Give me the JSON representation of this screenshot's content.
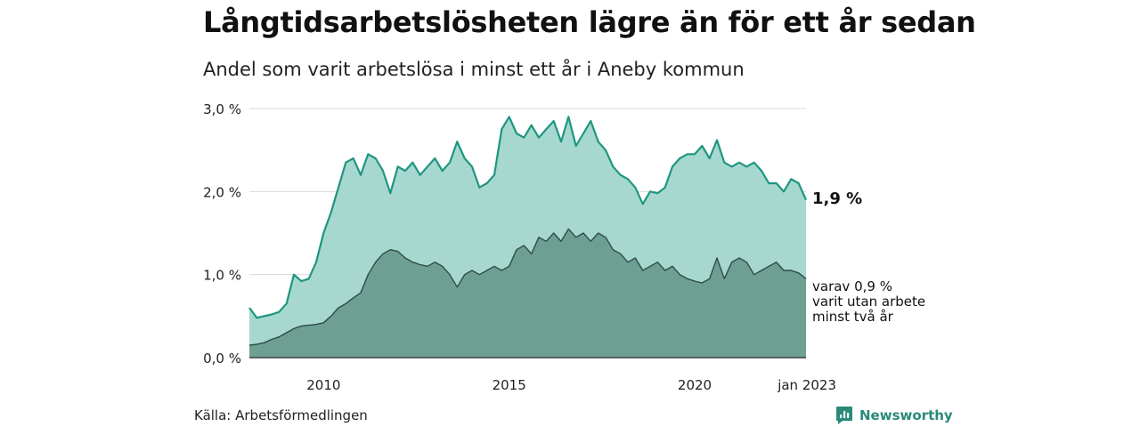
{
  "title": "Långtidsarbetslösheten lägre än för ett år sedan",
  "subtitle": "Andel som varit arbetslösa i minst ett år i Aneby kommun",
  "source": "Källa: Arbetsförmedlingen",
  "brand": "Newsworthy",
  "end_label": "1,9 %",
  "note_lines": [
    "varav 0,9 %",
    "varit utan arbete",
    "minst två år"
  ],
  "colors": {
    "upper_fill": "#a6d8cf",
    "upper_line": "#1e9680",
    "lower_fill": "#6e9f93",
    "lower_line": "#2f4b45",
    "grid": "#d9d9d9",
    "brand": "#2a8a78"
  },
  "chart_data": {
    "type": "area",
    "x_unit": "year",
    "xlim": [
      2008.0,
      2023.0
    ],
    "ylim": [
      0,
      3.0
    ],
    "y_ticks": [
      0,
      1,
      2,
      3
    ],
    "y_tick_labels": [
      "0,0 %",
      "1,0 %",
      "2,0 %",
      "3,0 %"
    ],
    "x_ticks": [
      2010,
      2015,
      2020,
      2023.0
    ],
    "x_tick_labels": [
      "2010",
      "2015",
      "2020",
      "jan 2023"
    ],
    "grid": true,
    "series": [
      {
        "x": [
          2008.0,
          2008.2,
          2008.4,
          2008.6,
          2008.8,
          2009.0,
          2009.2,
          2009.4,
          2009.6,
          2009.8,
          2010.0,
          2010.2,
          2010.4,
          2010.6,
          2010.8,
          2011.0,
          2011.2,
          2011.4,
          2011.6,
          2011.8,
          2012.0,
          2012.2,
          2012.4,
          2012.6,
          2012.8,
          2013.0,
          2013.2,
          2013.4,
          2013.6,
          2013.8,
          2014.0,
          2014.2,
          2014.4,
          2014.6,
          2014.8,
          2015.0,
          2015.2,
          2015.4,
          2015.6,
          2015.8,
          2016.0,
          2016.2,
          2016.4,
          2016.6,
          2016.8,
          2017.0,
          2017.2,
          2017.4,
          2017.6,
          2017.8,
          2018.0,
          2018.2,
          2018.4,
          2018.6,
          2018.8,
          2019.0,
          2019.2,
          2019.4,
          2019.6,
          2019.8,
          2020.0,
          2020.2,
          2020.4,
          2020.6,
          2020.8,
          2021.0,
          2021.2,
          2021.4,
          2021.6,
          2021.8,
          2022.0,
          2022.2,
          2022.4,
          2022.6,
          2022.8,
          2023.0
        ],
        "y": [
          0.6,
          0.48,
          0.5,
          0.52,
          0.55,
          0.65,
          1.0,
          0.92,
          0.95,
          1.15,
          1.5,
          1.75,
          2.05,
          2.35,
          2.4,
          2.2,
          2.45,
          2.4,
          2.25,
          1.98,
          2.3,
          2.25,
          2.35,
          2.2,
          2.3,
          2.4,
          2.25,
          2.35,
          2.6,
          2.4,
          2.3,
          2.05,
          2.1,
          2.2,
          2.75,
          2.9,
          2.7,
          2.65,
          2.8,
          2.65,
          2.75,
          2.85,
          2.6,
          2.9,
          2.55,
          2.7,
          2.85,
          2.6,
          2.5,
          2.3,
          2.2,
          2.15,
          2.05,
          1.85,
          2.0,
          1.98,
          2.05,
          2.3,
          2.4,
          2.45,
          2.45,
          2.55,
          2.4,
          2.62,
          2.35,
          2.3,
          2.35,
          2.3,
          2.35,
          2.25,
          2.1,
          2.1,
          2.0,
          2.15,
          2.1,
          1.9
        ]
      },
      {
        "x": [
          2008.0,
          2008.2,
          2008.4,
          2008.6,
          2008.8,
          2009.0,
          2009.2,
          2009.4,
          2009.6,
          2009.8,
          2010.0,
          2010.2,
          2010.4,
          2010.6,
          2010.8,
          2011.0,
          2011.2,
          2011.4,
          2011.6,
          2011.8,
          2012.0,
          2012.2,
          2012.4,
          2012.6,
          2012.8,
          2013.0,
          2013.2,
          2013.4,
          2013.6,
          2013.8,
          2014.0,
          2014.2,
          2014.4,
          2014.6,
          2014.8,
          2015.0,
          2015.2,
          2015.4,
          2015.6,
          2015.8,
          2016.0,
          2016.2,
          2016.4,
          2016.6,
          2016.8,
          2017.0,
          2017.2,
          2017.4,
          2017.6,
          2017.8,
          2018.0,
          2018.2,
          2018.4,
          2018.6,
          2018.8,
          2019.0,
          2019.2,
          2019.4,
          2019.6,
          2019.8,
          2020.0,
          2020.2,
          2020.4,
          2020.6,
          2020.8,
          2021.0,
          2021.2,
          2021.4,
          2021.6,
          2021.8,
          2022.0,
          2022.2,
          2022.4,
          2022.6,
          2022.8,
          2023.0
        ],
        "y": [
          0.15,
          0.16,
          0.18,
          0.22,
          0.25,
          0.3,
          0.35,
          0.38,
          0.39,
          0.4,
          0.42,
          0.5,
          0.6,
          0.65,
          0.72,
          0.78,
          1.0,
          1.15,
          1.25,
          1.3,
          1.28,
          1.2,
          1.15,
          1.12,
          1.1,
          1.15,
          1.1,
          1.0,
          0.85,
          1.0,
          1.05,
          1.0,
          1.05,
          1.1,
          1.05,
          1.1,
          1.3,
          1.35,
          1.25,
          1.45,
          1.4,
          1.5,
          1.4,
          1.55,
          1.45,
          1.5,
          1.4,
          1.5,
          1.45,
          1.3,
          1.25,
          1.15,
          1.2,
          1.05,
          1.1,
          1.15,
          1.05,
          1.1,
          1.0,
          0.95,
          0.92,
          0.9,
          0.95,
          1.2,
          0.95,
          1.15,
          1.2,
          1.15,
          1.0,
          1.05,
          1.1,
          1.15,
          1.05,
          1.05,
          1.02,
          0.95
        ]
      }
    ]
  }
}
